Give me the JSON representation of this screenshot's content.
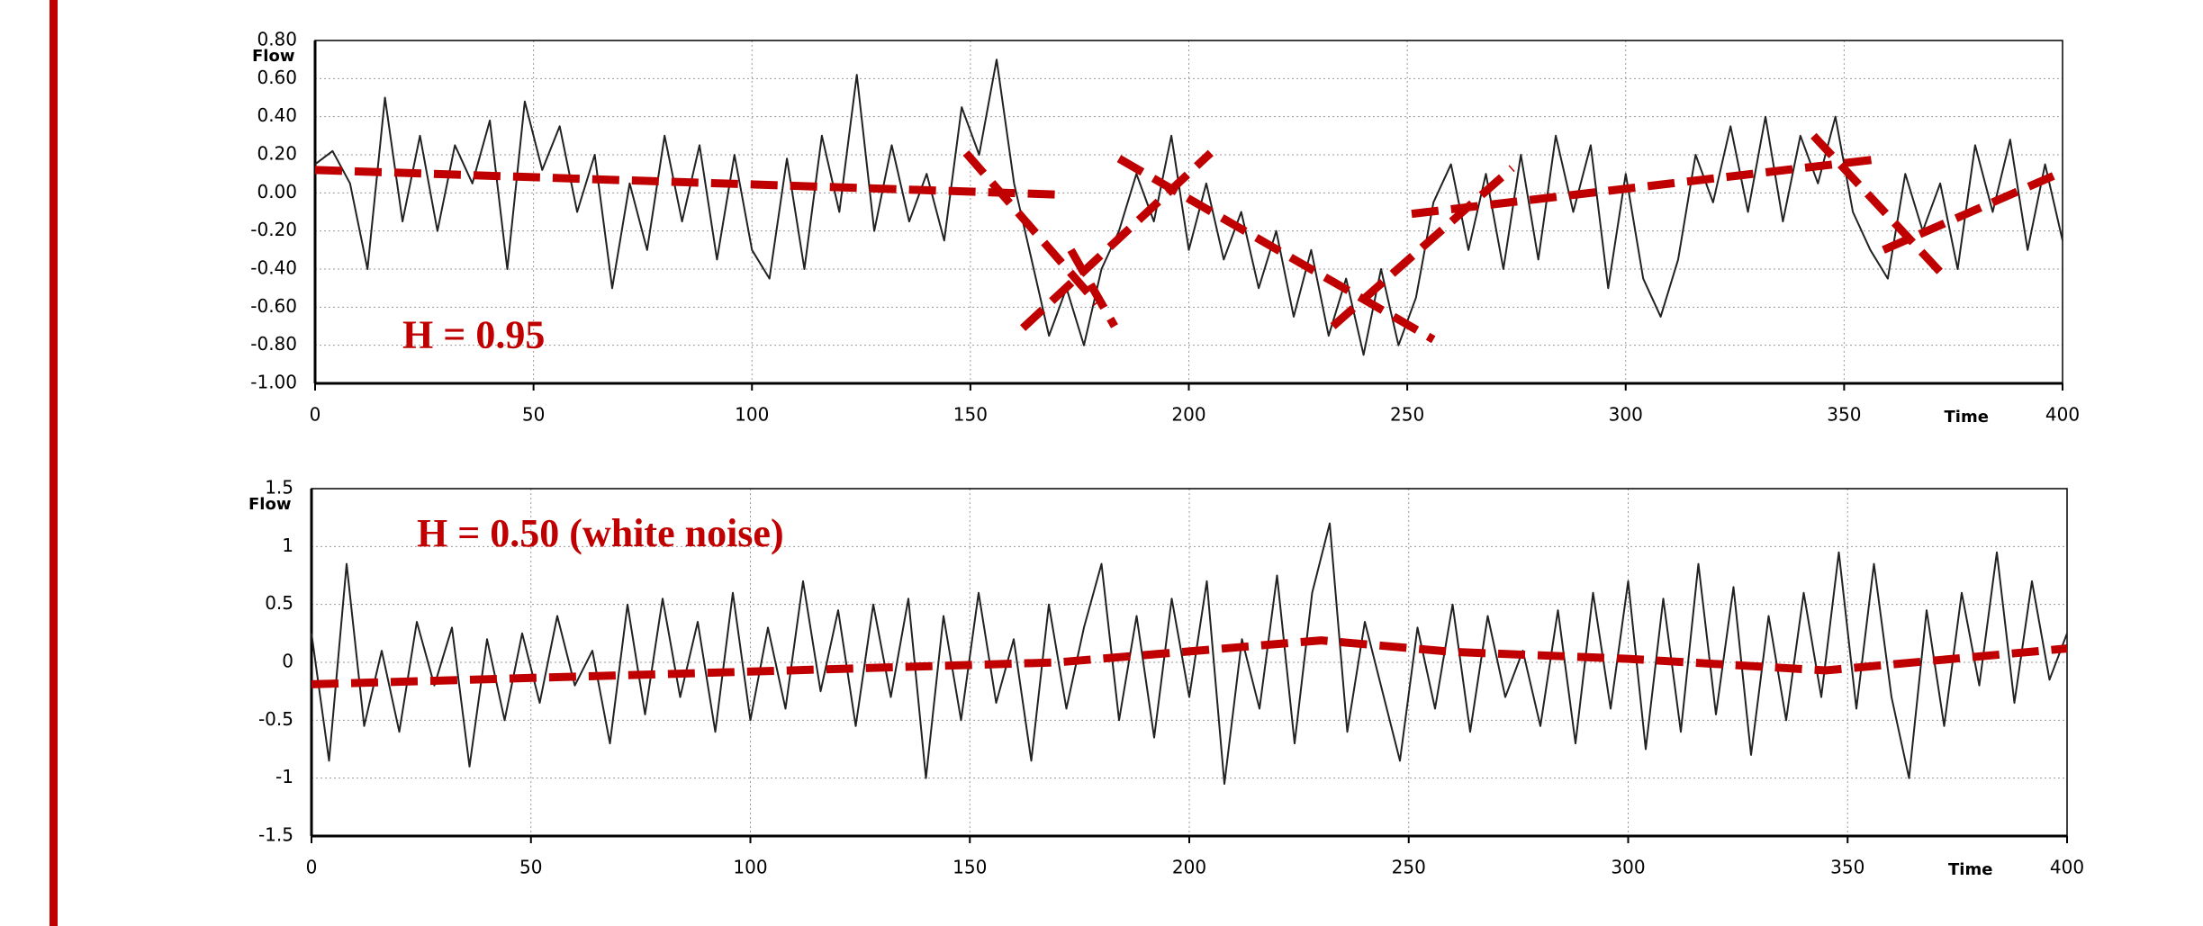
{
  "chart_data": [
    {
      "type": "line",
      "annotation": "H = 0.95",
      "xlabel": "Time",
      "ylabel": "Flow",
      "grid": true,
      "xlim": [
        0,
        400
      ],
      "xticks": [
        0,
        50,
        100,
        150,
        200,
        250,
        300,
        350,
        400
      ],
      "ylim": [
        -1.0,
        0.8
      ],
      "yticks": [
        {
          "value": -1.0,
          "label": "-1.00"
        },
        {
          "value": -0.8,
          "label": "-0.80"
        },
        {
          "value": -0.6,
          "label": "-0.60"
        },
        {
          "value": -0.4,
          "label": "-0.40"
        },
        {
          "value": -0.2,
          "label": "-0.20"
        },
        {
          "value": 0,
          "label": "0.00"
        },
        {
          "value": 0.2,
          "label": "0.20"
        },
        {
          "value": 0.4,
          "label": "0.40"
        },
        {
          "value": 0.6,
          "label": "0.60"
        },
        {
          "value": 0.8,
          "label": "0.80"
        }
      ],
      "series": [
        {
          "color": "#222222",
          "line_style": "solid",
          "x": [
            0,
            4,
            8,
            12,
            16,
            20,
            24,
            28,
            32,
            36,
            40,
            44,
            48,
            52,
            56,
            60,
            64,
            68,
            72,
            76,
            80,
            84,
            88,
            92,
            96,
            100,
            104,
            108,
            112,
            116,
            120,
            124,
            128,
            132,
            136,
            140,
            144,
            148,
            152,
            156,
            160,
            164,
            168,
            172,
            176,
            180,
            184,
            188,
            192,
            196,
            200,
            204,
            208,
            212,
            216,
            220,
            224,
            228,
            232,
            236,
            240,
            244,
            248,
            252,
            256,
            260,
            264,
            268,
            272,
            276,
            280,
            284,
            288,
            292,
            296,
            300,
            304,
            308,
            312,
            316,
            320,
            324,
            328,
            332,
            336,
            340,
            344,
            348,
            352,
            356,
            360,
            364,
            368,
            372,
            376,
            380,
            384,
            388,
            392,
            396,
            400
          ],
          "values": [
            0.15,
            0.22,
            0.05,
            -0.4,
            0.5,
            -0.15,
            0.3,
            -0.2,
            0.25,
            0.05,
            0.38,
            -0.4,
            0.48,
            0.12,
            0.35,
            -0.1,
            0.2,
            -0.5,
            0.05,
            -0.3,
            0.3,
            -0.15,
            0.25,
            -0.35,
            0.2,
            -0.3,
            -0.45,
            0.18,
            -0.4,
            0.3,
            -0.1,
            0.62,
            -0.2,
            0.25,
            -0.15,
            0.1,
            -0.25,
            0.45,
            0.2,
            0.7,
            0.05,
            -0.35,
            -0.75,
            -0.5,
            -0.8,
            -0.4,
            -0.2,
            0.1,
            -0.15,
            0.3,
            -0.3,
            0.05,
            -0.35,
            -0.1,
            -0.5,
            -0.2,
            -0.65,
            -0.3,
            -0.75,
            -0.45,
            -0.85,
            -0.4,
            -0.8,
            -0.55,
            -0.05,
            0.15,
            -0.3,
            0.1,
            -0.4,
            0.2,
            -0.35,
            0.3,
            -0.1,
            0.25,
            -0.5,
            0.1,
            -0.45,
            -0.65,
            -0.35,
            0.2,
            -0.05,
            0.35,
            -0.1,
            0.4,
            -0.15,
            0.3,
            0.05,
            0.4,
            -0.1,
            -0.3,
            -0.45,
            0.1,
            -0.2,
            0.05,
            -0.4,
            0.25,
            -0.1,
            0.28,
            -0.3,
            0.15,
            -0.25
          ]
        },
        {
          "color": "#c00000",
          "line_style": "dashed",
          "x": [
            0,
            172
          ],
          "values": [
            0.12,
            -0.01
          ]
        },
        {
          "color": "#c00000",
          "line_style": "dashed",
          "x": [
            149,
            179
          ],
          "values": [
            0.21,
            -0.58
          ]
        },
        {
          "color": "#c00000",
          "line_style": "dashed",
          "x": [
            173,
            183
          ],
          "values": [
            -0.3,
            -0.7
          ]
        },
        {
          "color": "#c00000",
          "line_style": "dashed",
          "x": [
            162,
            205
          ],
          "values": [
            -0.71,
            0.21
          ]
        },
        {
          "color": "#c00000",
          "line_style": "dashed",
          "x": [
            184,
            256
          ],
          "values": [
            0.18,
            -0.77
          ]
        },
        {
          "color": "#c00000",
          "line_style": "dashed",
          "x": [
            233,
            274
          ],
          "values": [
            -0.7,
            0.13
          ]
        },
        {
          "color": "#c00000",
          "line_style": "dashed",
          "x": [
            251,
            359
          ],
          "values": [
            -0.11,
            0.18
          ]
        },
        {
          "color": "#c00000",
          "line_style": "dashed",
          "x": [
            343,
            373
          ],
          "values": [
            0.3,
            -0.44
          ]
        },
        {
          "color": "#c00000",
          "line_style": "dashed",
          "x": [
            359,
            400
          ],
          "values": [
            -0.3,
            0.11
          ]
        }
      ]
    },
    {
      "type": "line",
      "annotation": "H = 0.50 (white noise)",
      "xlabel": "Time",
      "ylabel": "Flow",
      "grid": true,
      "xlim": [
        0,
        400
      ],
      "xticks": [
        0,
        50,
        100,
        150,
        200,
        250,
        300,
        350,
        400
      ],
      "ylim": [
        -1.5,
        1.5
      ],
      "yticks": [
        -1.5,
        -1,
        -0.5,
        0,
        0.5,
        1,
        1.5
      ],
      "series": [
        {
          "color": "#222222",
          "line_style": "solid",
          "x": [
            0,
            4,
            8,
            12,
            16,
            20,
            24,
            28,
            32,
            36,
            40,
            44,
            48,
            52,
            56,
            60,
            64,
            68,
            72,
            76,
            80,
            84,
            88,
            92,
            96,
            100,
            104,
            108,
            112,
            116,
            120,
            124,
            128,
            132,
            136,
            140,
            144,
            148,
            152,
            156,
            160,
            164,
            168,
            172,
            176,
            180,
            184,
            188,
            192,
            196,
            200,
            204,
            208,
            212,
            216,
            220,
            224,
            228,
            232,
            236,
            240,
            244,
            248,
            252,
            256,
            260,
            264,
            268,
            272,
            276,
            280,
            284,
            288,
            292,
            296,
            300,
            304,
            308,
            312,
            316,
            320,
            324,
            328,
            332,
            336,
            340,
            344,
            348,
            352,
            356,
            360,
            364,
            368,
            372,
            376,
            380,
            384,
            388,
            392,
            396,
            400
          ],
          "values": [
            0.25,
            -0.85,
            0.85,
            -0.55,
            0.1,
            -0.6,
            0.35,
            -0.2,
            0.3,
            -0.9,
            0.2,
            -0.5,
            0.25,
            -0.35,
            0.4,
            -0.2,
            0.1,
            -0.7,
            0.5,
            -0.45,
            0.55,
            -0.3,
            0.35,
            -0.6,
            0.6,
            -0.5,
            0.3,
            -0.4,
            0.7,
            -0.25,
            0.45,
            -0.55,
            0.5,
            -0.3,
            0.55,
            -1.0,
            0.4,
            -0.5,
            0.6,
            -0.35,
            0.2,
            -0.85,
            0.5,
            -0.4,
            0.3,
            0.85,
            -0.5,
            0.4,
            -0.65,
            0.55,
            -0.3,
            0.7,
            -1.05,
            0.2,
            -0.4,
            0.75,
            -0.7,
            0.6,
            1.2,
            -0.6,
            0.35,
            -0.25,
            -0.85,
            0.3,
            -0.4,
            0.5,
            -0.6,
            0.4,
            -0.3,
            0.1,
            -0.55,
            0.45,
            -0.7,
            0.6,
            -0.4,
            0.7,
            -0.75,
            0.55,
            -0.6,
            0.85,
            -0.45,
            0.65,
            -0.8,
            0.4,
            -0.5,
            0.6,
            -0.3,
            0.95,
            -0.4,
            0.85,
            -0.3,
            -1.0,
            0.45,
            -0.55,
            0.6,
            -0.2,
            0.95,
            -0.35,
            0.7,
            -0.15,
            0.25
          ]
        },
        {
          "color": "#c00000",
          "line_style": "dashed",
          "x": [
            0,
            100,
            170,
            230,
            260,
            300,
            345,
            400
          ],
          "values": [
            -0.19,
            -0.08,
            0.0,
            0.19,
            0.09,
            0.03,
            -0.07,
            0.12
          ]
        }
      ]
    }
  ]
}
